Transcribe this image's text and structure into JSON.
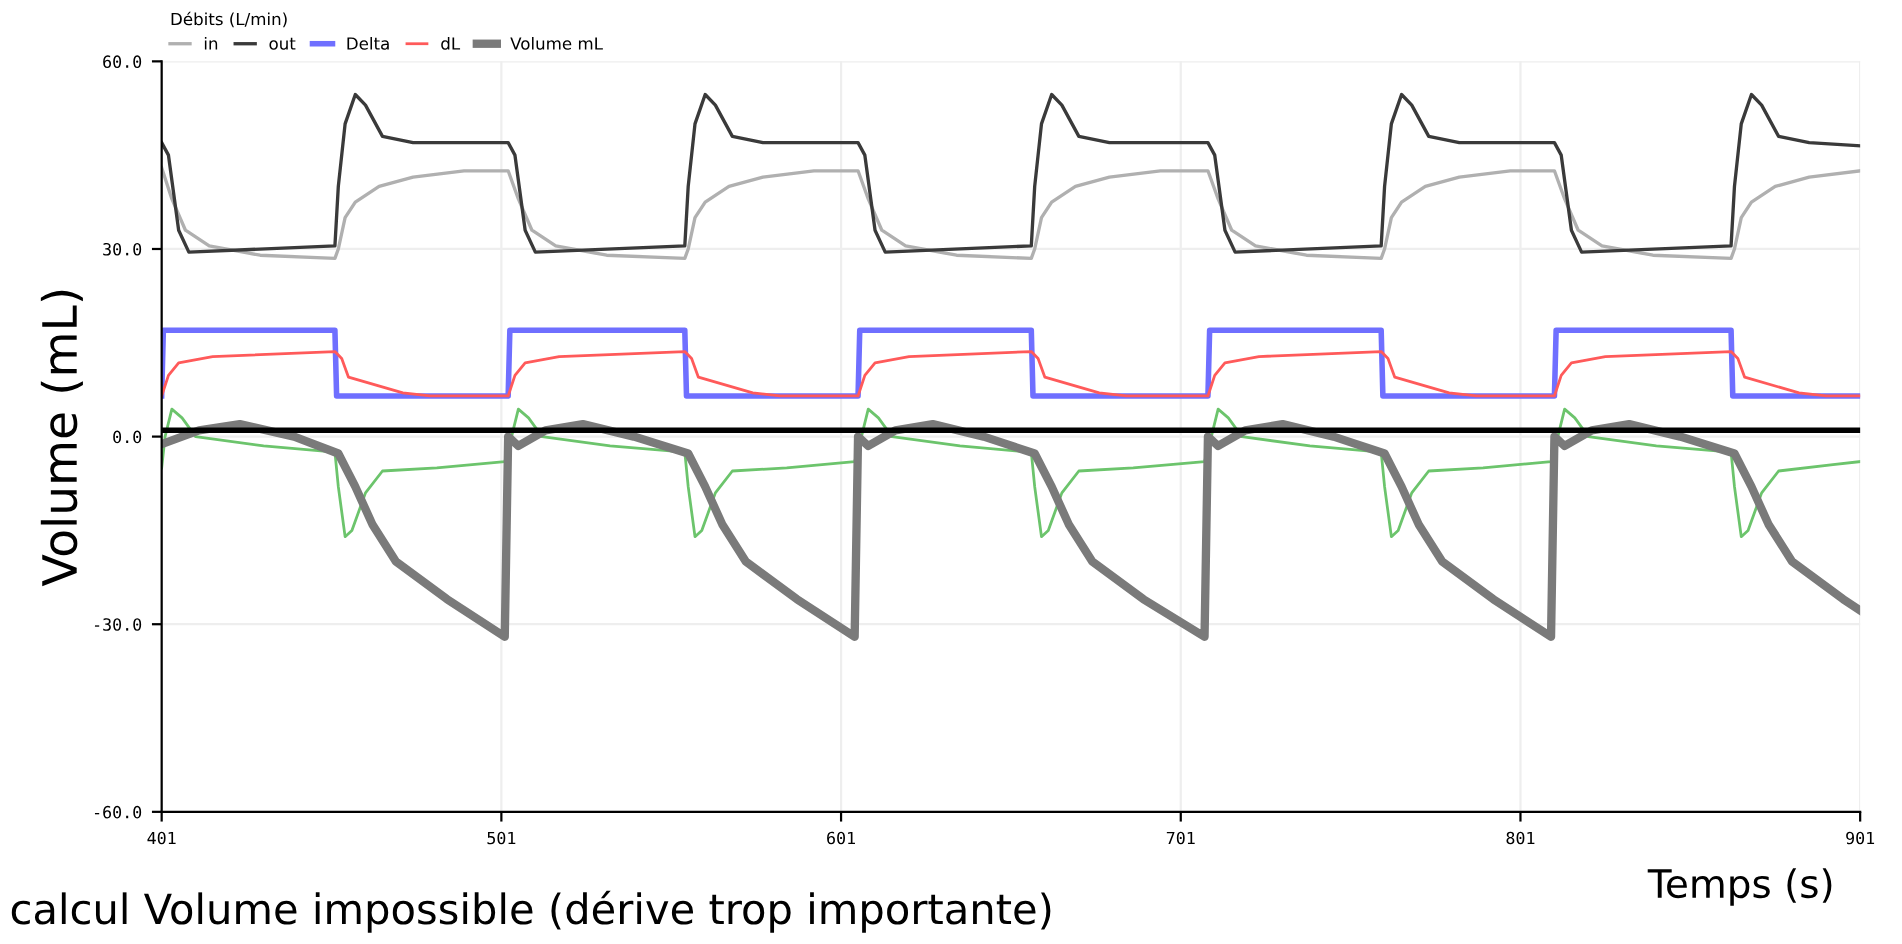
{
  "chart_data": {
    "type": "line",
    "xlabel": "Temps (s)",
    "ylabel": "Volume (mL)",
    "legend_title": "Débits (L/min)",
    "xlim": [
      401,
      901
    ],
    "xticks": [
      401,
      501,
      601,
      701,
      801,
      901
    ],
    "ylim": [
      -60,
      60
    ],
    "yticks": [
      {
        "value": 60,
        "label": "60.0"
      },
      {
        "value": 30,
        "label": "30.0"
      },
      {
        "value": 0,
        "label": "0.0"
      },
      {
        "value": -30,
        "label": "-30.0"
      },
      {
        "value": -60,
        "label": "-60.0"
      }
    ],
    "grid": true,
    "legend": "top",
    "marker": "none",
    "line_style": "solid",
    "ref_lines": [
      {
        "axis": "y",
        "value": 1,
        "label": null,
        "color": "#000000"
      }
    ],
    "annotations": [
      "calcul Volume impossible (dérive trop importante)"
    ],
    "series": [
      {
        "name": "in",
        "color": "#b0b0b0",
        "x": [
          401,
          404,
          408,
          415,
          430,
          452,
          453,
          455,
          458,
          465,
          475,
          490,
          503,
          506,
          510,
          517,
          532,
          555,
          556,
          558,
          561,
          568,
          578,
          593,
          606,
          609,
          613,
          620,
          635,
          657,
          658,
          660,
          663,
          670,
          680,
          695,
          709,
          712,
          716,
          723,
          738,
          760,
          761,
          763,
          766,
          773,
          783,
          798,
          811,
          814,
          818,
          825,
          840,
          863,
          864,
          866,
          869,
          876,
          886,
          901
        ],
        "values": [
          43,
          38,
          33,
          30.5,
          29,
          28.5,
          30,
          35,
          37.5,
          40,
          41.5,
          42.5,
          42.5,
          38,
          33,
          30.5,
          29,
          28.5,
          30,
          35,
          37.5,
          40,
          41.5,
          42.5,
          42.5,
          38,
          33,
          30.5,
          29,
          28.5,
          30,
          35,
          37.5,
          40,
          41.5,
          42.5,
          42.5,
          38,
          33,
          30.5,
          29,
          28.5,
          30,
          35,
          37.5,
          40,
          41.5,
          42.5,
          42.5,
          38,
          33,
          30.5,
          29,
          28.5,
          30,
          35,
          37.5,
          40,
          41.5,
          42.5
        ]
      },
      {
        "name": "out",
        "color": "#3a3a3a",
        "x": [
          401,
          403,
          406,
          409,
          452,
          453,
          455,
          458,
          461,
          466,
          475,
          503,
          505,
          508,
          511,
          555,
          556,
          558,
          561,
          564,
          569,
          578,
          606,
          608,
          611,
          614,
          657,
          658,
          660,
          663,
          666,
          671,
          680,
          709,
          711,
          714,
          717,
          760,
          761,
          763,
          766,
          769,
          774,
          783,
          811,
          813,
          816,
          819,
          863,
          864,
          866,
          869,
          872,
          877,
          886,
          901
        ],
        "values": [
          47,
          45,
          33,
          29.5,
          30.5,
          40,
          50,
          54.7,
          53,
          48,
          47,
          47,
          45,
          33,
          29.5,
          30.5,
          40,
          50,
          54.7,
          53,
          48,
          47,
          47,
          45,
          33,
          29.5,
          30.5,
          40,
          50,
          54.7,
          53,
          48,
          47,
          47,
          45,
          33,
          29.5,
          30.5,
          40,
          50,
          54.7,
          53,
          48,
          47,
          47,
          45,
          33,
          29.5,
          30.5,
          40,
          50,
          54.7,
          53,
          48,
          47,
          46.5
        ]
      },
      {
        "name": "Delta",
        "color": "#6f6fff",
        "x": [
          401,
          401.5,
          452,
          452.5,
          503,
          503.5,
          555,
          555.5,
          606,
          606.5,
          657,
          657.5,
          709,
          709.5,
          760,
          760.5,
          811,
          811.5,
          863,
          863.5,
          901
        ],
        "values": [
          6.5,
          17,
          17,
          6.5,
          6.5,
          17,
          17,
          6.5,
          6.5,
          17,
          17,
          6.5,
          6.5,
          17,
          17,
          6.5,
          6.5,
          17,
          17,
          6.5,
          6.5
        ]
      },
      {
        "name": "dL",
        "color": "#ff5a5a",
        "x": [
          401,
          403,
          406,
          416,
          452,
          454,
          456,
          472,
          480,
          503,
          505,
          508,
          518,
          555,
          557,
          559,
          575,
          583,
          606,
          608,
          611,
          621,
          657,
          659,
          661,
          677,
          685,
          709,
          711,
          714,
          724,
          760,
          762,
          764,
          780,
          788,
          811,
          813,
          816,
          826,
          863,
          865,
          867,
          883,
          891,
          901
        ],
        "values": [
          6.5,
          9.8,
          11.8,
          12.8,
          13.6,
          12.5,
          9.5,
          7,
          6.5,
          6.5,
          9.8,
          11.8,
          12.8,
          13.6,
          12.5,
          9.5,
          7,
          6.5,
          6.5,
          9.8,
          11.8,
          12.8,
          13.6,
          12.5,
          9.5,
          7,
          6.5,
          6.5,
          9.8,
          11.8,
          12.8,
          13.6,
          12.5,
          9.5,
          7,
          6.5,
          6.5,
          9.8,
          11.8,
          12.8,
          13.6,
          12.5,
          9.5,
          7,
          6.5,
          6.5
        ]
      },
      {
        "color": "#6cc46c",
        "x": [
          401,
          402,
          404,
          407,
          411,
          431,
          452,
          453,
          455,
          457,
          461,
          466,
          482,
          502,
          504,
          506,
          509,
          513,
          533,
          555,
          556,
          558,
          560,
          564,
          569,
          585,
          605,
          607,
          609,
          612,
          616,
          636,
          657,
          658,
          660,
          662,
          666,
          671,
          687,
          708,
          710,
          712,
          715,
          719,
          739,
          760,
          761,
          763,
          765,
          769,
          774,
          790,
          810,
          812,
          814,
          817,
          821,
          841,
          863,
          864,
          866,
          868,
          872,
          877,
          893,
          901
        ],
        "values": [
          -5,
          0,
          4.4,
          3,
          0,
          -1.5,
          -2.5,
          -8,
          -16,
          -15,
          -9,
          -5.5,
          -5,
          -4,
          0,
          4.4,
          3,
          0,
          -1.5,
          -2.5,
          -8,
          -16,
          -15,
          -9,
          -5.5,
          -5,
          -4,
          0,
          4.4,
          3,
          0,
          -1.5,
          -2.5,
          -8,
          -16,
          -15,
          -9,
          -5.5,
          -5,
          -4,
          0,
          4.4,
          3,
          0,
          -1.5,
          -2.5,
          -8,
          -16,
          -15,
          -9,
          -5.5,
          -5,
          -4,
          0,
          4.4,
          3,
          0,
          -1.5,
          -2.5,
          -8,
          -16,
          -15,
          -9,
          -5.5,
          -4.5,
          -4
        ]
      },
      {
        "name": "Volume mL",
        "color": "#7a7a7a",
        "x": [
          401,
          412,
          424,
          440,
          453,
          458,
          463,
          470,
          485,
          502,
          503,
          506,
          514,
          525,
          540,
          556,
          561,
          566,
          573,
          588,
          605,
          606,
          609,
          617,
          628,
          643,
          658,
          663,
          668,
          675,
          690,
          708,
          709,
          712,
          720,
          731,
          746,
          761,
          766,
          771,
          778,
          793,
          810,
          811,
          814,
          822,
          833,
          848,
          864,
          869,
          874,
          881,
          896,
          901
        ],
        "values": [
          -1.2,
          1,
          2,
          0,
          -2.7,
          -8,
          -14,
          -20,
          -26,
          -32,
          0,
          -1.5,
          1,
          2,
          0,
          -2.7,
          -8,
          -14,
          -20,
          -26,
          -32,
          0,
          -1.5,
          1,
          2,
          0,
          -2.7,
          -8,
          -14,
          -20,
          -26,
          -32,
          0,
          -1.5,
          1,
          2,
          0,
          -2.7,
          -8,
          -14,
          -20,
          -26,
          -32,
          0,
          -1.5,
          1,
          2,
          0,
          -2.7,
          -8,
          -14,
          -20,
          -26,
          -27.8
        ]
      }
    ]
  }
}
